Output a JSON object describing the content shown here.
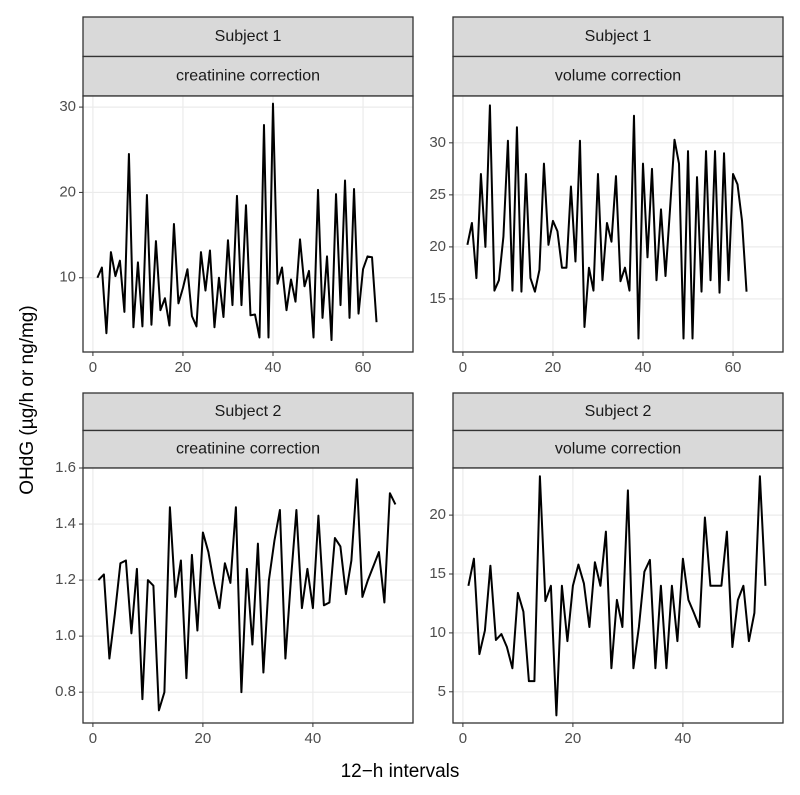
{
  "xlabel": "12−h intervals",
  "ylabel": "OHdG (µg/h or ng/mg)",
  "chart_data": [
    {
      "type": "line",
      "strips": [
        "Subject 1",
        "creatinine correction"
      ],
      "color": "#000000",
      "grid": true,
      "x": [
        1,
        2,
        3,
        4,
        5,
        6,
        7,
        8,
        9,
        10,
        11,
        12,
        13,
        14,
        15,
        16,
        17,
        18,
        19,
        20,
        21,
        22,
        23,
        24,
        25,
        26,
        27,
        28,
        29,
        30,
        31,
        32,
        33,
        34,
        35,
        36,
        37,
        38,
        39,
        40,
        41,
        42,
        43,
        44,
        45,
        46,
        47,
        48,
        49,
        50,
        51,
        52,
        53,
        54,
        55,
        56,
        57,
        58,
        59,
        60,
        61,
        62,
        63
      ],
      "values": [
        10,
        11.2,
        3.5,
        13,
        10.2,
        12,
        6,
        24.5,
        4.2,
        11.8,
        4.3,
        19.7,
        4.5,
        14.3,
        6.2,
        7.6,
        4.4,
        16.3,
        7,
        8.8,
        11,
        5.5,
        4.3,
        13,
        8.5,
        13.2,
        4.2,
        10,
        5.4,
        14.4,
        6.8,
        19.6,
        6.8,
        18.5,
        5.6,
        5.7,
        3,
        27.9,
        3,
        30.4,
        9.3,
        11.2,
        6.2,
        9.8,
        7.2,
        14.5,
        9,
        10.8,
        3,
        20.3,
        5.3,
        12.5,
        2.7,
        19.8,
        6.8,
        21.4,
        5.3,
        20.4,
        5.8,
        11,
        12.5,
        12.4,
        4.8
      ],
      "xlim": [
        -2.2,
        71.1
      ],
      "xticks": [
        0,
        20,
        40,
        60
      ],
      "ylim": [
        1.3,
        31.3
      ],
      "yticks": [
        10,
        20,
        30
      ]
    },
    {
      "type": "line",
      "strips": [
        "Subject 1",
        "volume correction"
      ],
      "color": "#000000",
      "grid": true,
      "x": [
        1,
        2,
        3,
        4,
        5,
        6,
        7,
        8,
        9,
        10,
        11,
        12,
        13,
        14,
        15,
        16,
        17,
        18,
        19,
        20,
        21,
        22,
        23,
        24,
        25,
        26,
        27,
        28,
        29,
        30,
        31,
        32,
        33,
        34,
        35,
        36,
        37,
        38,
        39,
        40,
        41,
        42,
        43,
        44,
        45,
        46,
        47,
        48,
        49,
        50,
        51,
        52,
        53,
        54,
        55,
        56,
        57,
        58,
        59,
        60,
        61,
        62,
        63
      ],
      "values": [
        20.2,
        22.3,
        17,
        27,
        20,
        33.6,
        15.8,
        16.8,
        21,
        30.2,
        15.8,
        31.5,
        15.7,
        27,
        17,
        15.7,
        17.8,
        28,
        20.2,
        22.5,
        21.5,
        18,
        18,
        25.8,
        18.6,
        30.2,
        12.3,
        18,
        15.8,
        27,
        16.8,
        22.3,
        20.5,
        26.8,
        16.7,
        18,
        15.8,
        32.6,
        11.2,
        28,
        19,
        27.5,
        16.8,
        23.6,
        17.2,
        23.6,
        30.3,
        28,
        11.2,
        29.2,
        11.2,
        26.7,
        15.7,
        29.2,
        16.8,
        29.2,
        15.6,
        29,
        16.8,
        27,
        26,
        22.5,
        15.7
      ],
      "xlim": [
        -2.2,
        71.1
      ],
      "xticks": [
        0,
        20,
        40,
        60
      ],
      "ylim": [
        9.9,
        34.5
      ],
      "yticks": [
        15,
        20,
        25,
        30
      ]
    },
    {
      "type": "line",
      "strips": [
        "Subject 2",
        "creatinine correction"
      ],
      "color": "#000000",
      "grid": true,
      "x": [
        1,
        2,
        3,
        4,
        5,
        6,
        7,
        8,
        9,
        10,
        11,
        12,
        13,
        14,
        15,
        16,
        17,
        18,
        19,
        20,
        21,
        22,
        23,
        24,
        25,
        26,
        27,
        28,
        29,
        30,
        31,
        32,
        33,
        34,
        35,
        36,
        37,
        38,
        39,
        40,
        41,
        42,
        43,
        44,
        45,
        46,
        47,
        48,
        49,
        50,
        51,
        52,
        53,
        54,
        55
      ],
      "values": [
        1.2,
        1.22,
        0.92,
        1.08,
        1.26,
        1.27,
        1.01,
        1.24,
        0.775,
        1.2,
        1.18,
        0.735,
        0.8,
        1.46,
        1.14,
        1.27,
        0.85,
        1.29,
        1.02,
        1.37,
        1.3,
        1.19,
        1.1,
        1.26,
        1.19,
        1.46,
        0.8,
        1.24,
        0.97,
        1.33,
        0.87,
        1.2,
        1.34,
        1.45,
        0.92,
        1.2,
        1.45,
        1.1,
        1.24,
        1.1,
        1.43,
        1.11,
        1.12,
        1.35,
        1.32,
        1.15,
        1.27,
        1.56,
        1.14,
        1.2,
        1.25,
        1.3,
        1.12,
        1.51,
        1.47
      ],
      "xlim": [
        -1.8,
        58.2
      ],
      "xticks": [
        0,
        20,
        40
      ],
      "ylim": [
        0.69,
        1.6
      ],
      "yticks": [
        0.8,
        {
          "value": 1,
          "label": "1.0"
        },
        1.2,
        1.4,
        1.6
      ]
    },
    {
      "type": "line",
      "strips": [
        "Subject 2",
        "volume correction"
      ],
      "color": "#000000",
      "grid": true,
      "x": [
        1,
        2,
        3,
        4,
        5,
        6,
        7,
        8,
        9,
        10,
        11,
        12,
        13,
        14,
        15,
        16,
        17,
        18,
        19,
        20,
        21,
        22,
        23,
        24,
        25,
        26,
        27,
        28,
        29,
        30,
        31,
        32,
        33,
        34,
        35,
        36,
        37,
        38,
        39,
        40,
        41,
        42,
        43,
        44,
        45,
        46,
        47,
        48,
        49,
        50,
        51,
        52,
        53,
        54,
        55
      ],
      "values": [
        14,
        16.3,
        8.2,
        10.2,
        15.7,
        9.4,
        9.9,
        8.8,
        7,
        13.4,
        11.8,
        5.9,
        5.9,
        23.3,
        12.7,
        14,
        3,
        14,
        9.3,
        14,
        15.8,
        14.2,
        10.5,
        16,
        14,
        18.6,
        7,
        12.8,
        10.5,
        22.1,
        7,
        10.5,
        15.2,
        16.2,
        7,
        14,
        7,
        14,
        9.3,
        16.3,
        12.8,
        11.7,
        10.5,
        19.8,
        14,
        14,
        14,
        18.6,
        8.8,
        12.8,
        14,
        9.3,
        11.7,
        23.3,
        14
      ],
      "xlim": [
        -1.8,
        58.2
      ],
      "xticks": [
        0,
        20,
        40
      ],
      "ylim": [
        2.35,
        24
      ],
      "yticks": [
        5,
        10,
        15,
        20
      ]
    }
  ]
}
